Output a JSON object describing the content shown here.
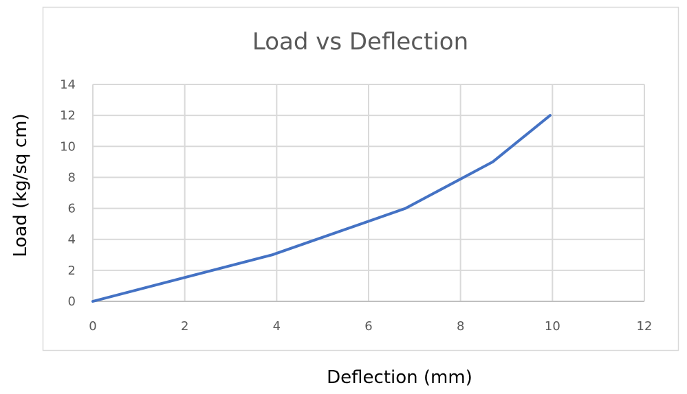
{
  "chart_data": {
    "type": "line",
    "title": "Load vs Deflection",
    "xlabel": "Deflection (mm)",
    "ylabel": "Load (kg/sq cm)",
    "xlim": [
      0,
      12
    ],
    "ylim": [
      0,
      14
    ],
    "xticks": [
      "0",
      "2",
      "4",
      "6",
      "8",
      "10",
      "12"
    ],
    "yticks": [
      "0",
      "2",
      "4",
      "6",
      "8",
      "10",
      "12",
      "14"
    ],
    "grid": true,
    "legend": "none",
    "series": [
      {
        "color": "#4472C4",
        "x": [
          0,
          3.9,
          6.8,
          8.7,
          9.95
        ],
        "y": [
          0,
          3,
          6,
          9,
          12
        ]
      }
    ]
  }
}
